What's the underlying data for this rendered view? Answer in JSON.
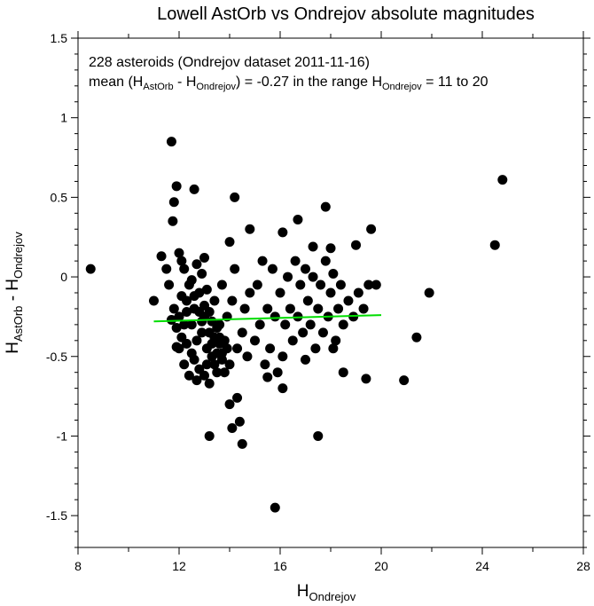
{
  "chart_data": {
    "type": "scatter",
    "title": "Lowell AstOrb vs Ondrejov absolute magnitudes",
    "xlabel": {
      "main": "H",
      "sub": "Ondrejov"
    },
    "ylabel": {
      "main": "H",
      "sub": "AstOrb",
      "middle": " - H",
      "sub2": "Ondrejov"
    },
    "xlim": [
      8,
      28
    ],
    "ylim": [
      -1.7,
      1.5
    ],
    "x_ticks": [
      8,
      12,
      16,
      20,
      24,
      28
    ],
    "y_ticks": [
      1.5,
      1,
      0.5,
      0,
      -0.5,
      -1,
      -1.5
    ],
    "x_tick_labels": [
      "8",
      "12",
      "16",
      "20",
      "24",
      "28"
    ],
    "y_tick_labels": [
      "1.5",
      "1",
      "0.5",
      "0",
      "-0.5",
      "-1",
      "-1.5"
    ],
    "annotation_line1": "228 asteroids (Ondrejov dataset 2011-11-16)",
    "annotation_line2": {
      "p1": "mean (H",
      "s1": "AstOrb",
      "p2": " - H",
      "s2": "Ondrejov",
      "p3": ") = -0.27 in the range H",
      "s3": "Ondrejov",
      "p4": " = 11 to 20"
    },
    "grid": false,
    "fit_line": {
      "x": [
        11,
        20
      ],
      "y": [
        -0.28,
        -0.24
      ],
      "color": "#00dd00"
    },
    "marker_color": "#000000",
    "points": [
      {
        "x": 8.5,
        "y": 0.05
      },
      {
        "x": 11.7,
        "y": 0.85
      },
      {
        "x": 11.9,
        "y": 0.57
      },
      {
        "x": 11.8,
        "y": 0.47
      },
      {
        "x": 11.75,
        "y": 0.35
      },
      {
        "x": 12.6,
        "y": 0.55
      },
      {
        "x": 14.2,
        "y": 0.5
      },
      {
        "x": 24.8,
        "y": 0.61
      },
      {
        "x": 24.5,
        "y": 0.2
      },
      {
        "x": 19.6,
        "y": 0.3
      },
      {
        "x": 17.8,
        "y": 0.44
      },
      {
        "x": 16.7,
        "y": 0.36
      },
      {
        "x": 16.1,
        "y": 0.28
      },
      {
        "x": 14.8,
        "y": 0.3
      },
      {
        "x": 14.0,
        "y": 0.22
      },
      {
        "x": 17.3,
        "y": 0.19
      },
      {
        "x": 18.0,
        "y": 0.18
      },
      {
        "x": 19.0,
        "y": 0.2
      },
      {
        "x": 21.9,
        "y": -0.1
      },
      {
        "x": 21.4,
        "y": -0.38
      },
      {
        "x": 20.9,
        "y": -0.65
      },
      {
        "x": 19.4,
        "y": -0.64
      },
      {
        "x": 15.8,
        "y": -1.45
      },
      {
        "x": 17.5,
        "y": -1.0
      },
      {
        "x": 13.2,
        "y": -1.0
      },
      {
        "x": 14.5,
        "y": -1.05
      },
      {
        "x": 14.1,
        "y": -0.95
      },
      {
        "x": 14.4,
        "y": -0.91
      },
      {
        "x": 14.0,
        "y": -0.8
      },
      {
        "x": 14.3,
        "y": -0.76
      },
      {
        "x": 15.5,
        "y": -0.63
      },
      {
        "x": 16.1,
        "y": -0.7
      },
      {
        "x": 15.9,
        "y": -0.6
      },
      {
        "x": 18.5,
        "y": -0.6
      },
      {
        "x": 17.0,
        "y": -0.52
      },
      {
        "x": 18.1,
        "y": -0.45
      },
      {
        "x": 11.0,
        "y": -0.15
      },
      {
        "x": 11.3,
        "y": 0.13
      },
      {
        "x": 11.5,
        "y": 0.05
      },
      {
        "x": 11.6,
        "y": -0.05
      },
      {
        "x": 11.7,
        "y": -0.27
      },
      {
        "x": 11.9,
        "y": -0.44
      },
      {
        "x": 12.0,
        "y": 0.15
      },
      {
        "x": 12.1,
        "y": 0.1
      },
      {
        "x": 12.2,
        "y": 0.05
      },
      {
        "x": 12.3,
        "y": -0.15
      },
      {
        "x": 12.4,
        "y": -0.05
      },
      {
        "x": 12.5,
        "y": -0.3
      },
      {
        "x": 12.6,
        "y": -0.2
      },
      {
        "x": 12.7,
        "y": -0.4
      },
      {
        "x": 12.8,
        "y": -0.1
      },
      {
        "x": 12.9,
        "y": 0.02
      },
      {
        "x": 13.0,
        "y": -0.25
      },
      {
        "x": 13.1,
        "y": -0.45
      },
      {
        "x": 13.2,
        "y": -0.35
      },
      {
        "x": 13.3,
        "y": -0.5
      },
      {
        "x": 13.4,
        "y": -0.15
      },
      {
        "x": 13.5,
        "y": -0.6
      },
      {
        "x": 13.6,
        "y": -0.3
      },
      {
        "x": 13.7,
        "y": -0.05
      },
      {
        "x": 13.8,
        "y": -0.4
      },
      {
        "x": 13.9,
        "y": -0.25
      },
      {
        "x": 14.0,
        "y": -0.55
      },
      {
        "x": 14.1,
        "y": -0.15
      },
      {
        "x": 14.2,
        "y": 0.05
      },
      {
        "x": 14.3,
        "y": -0.45
      },
      {
        "x": 14.5,
        "y": -0.35
      },
      {
        "x": 14.6,
        "y": -0.2
      },
      {
        "x": 14.7,
        "y": -0.5
      },
      {
        "x": 14.8,
        "y": -0.1
      },
      {
        "x": 15.0,
        "y": -0.4
      },
      {
        "x": 15.1,
        "y": -0.05
      },
      {
        "x": 15.2,
        "y": -0.3
      },
      {
        "x": 15.3,
        "y": 0.1
      },
      {
        "x": 15.4,
        "y": -0.55
      },
      {
        "x": 15.5,
        "y": -0.2
      },
      {
        "x": 15.6,
        "y": -0.45
      },
      {
        "x": 15.7,
        "y": 0.05
      },
      {
        "x": 15.8,
        "y": -0.25
      },
      {
        "x": 16.0,
        "y": -0.1
      },
      {
        "x": 16.1,
        "y": -0.5
      },
      {
        "x": 16.2,
        "y": -0.3
      },
      {
        "x": 16.3,
        "y": 0.0
      },
      {
        "x": 16.4,
        "y": -0.2
      },
      {
        "x": 16.5,
        "y": -0.4
      },
      {
        "x": 16.6,
        "y": 0.1
      },
      {
        "x": 16.7,
        "y": -0.25
      },
      {
        "x": 16.8,
        "y": -0.05
      },
      {
        "x": 16.9,
        "y": -0.35
      },
      {
        "x": 17.0,
        "y": 0.05
      },
      {
        "x": 17.1,
        "y": -0.15
      },
      {
        "x": 17.2,
        "y": -0.3
      },
      {
        "x": 17.3,
        "y": 0.0
      },
      {
        "x": 17.4,
        "y": -0.45
      },
      {
        "x": 17.5,
        "y": -0.2
      },
      {
        "x": 17.6,
        "y": -0.05
      },
      {
        "x": 17.7,
        "y": -0.35
      },
      {
        "x": 17.8,
        "y": 0.1
      },
      {
        "x": 17.9,
        "y": -0.25
      },
      {
        "x": 18.0,
        "y": -0.1
      },
      {
        "x": 18.1,
        "y": 0.02
      },
      {
        "x": 18.2,
        "y": -0.4
      },
      {
        "x": 18.3,
        "y": -0.2
      },
      {
        "x": 18.4,
        "y": -0.05
      },
      {
        "x": 18.5,
        "y": -0.3
      },
      {
        "x": 18.7,
        "y": -0.15
      },
      {
        "x": 18.9,
        "y": -0.25
      },
      {
        "x": 19.1,
        "y": -0.1
      },
      {
        "x": 19.3,
        "y": -0.2
      },
      {
        "x": 19.5,
        "y": -0.05
      },
      {
        "x": 19.8,
        "y": -0.05
      },
      {
        "x": 12.0,
        "y": -0.45
      },
      {
        "x": 12.1,
        "y": -0.38
      },
      {
        "x": 12.2,
        "y": -0.55
      },
      {
        "x": 12.3,
        "y": -0.42
      },
      {
        "x": 12.4,
        "y": -0.62
      },
      {
        "x": 12.5,
        "y": -0.48
      },
      {
        "x": 12.6,
        "y": -0.52
      },
      {
        "x": 12.7,
        "y": -0.65
      },
      {
        "x": 12.8,
        "y": -0.58
      },
      {
        "x": 12.9,
        "y": -0.35
      },
      {
        "x": 13.0,
        "y": -0.62
      },
      {
        "x": 13.1,
        "y": -0.55
      },
      {
        "x": 13.2,
        "y": -0.67
      },
      {
        "x": 13.3,
        "y": -0.42
      },
      {
        "x": 13.4,
        "y": -0.55
      },
      {
        "x": 13.5,
        "y": -0.48
      },
      {
        "x": 13.6,
        "y": -0.38
      },
      {
        "x": 13.7,
        "y": -0.52
      },
      {
        "x": 13.8,
        "y": -0.6
      },
      {
        "x": 13.9,
        "y": -0.45
      },
      {
        "x": 13.0,
        "y": -0.18
      },
      {
        "x": 13.1,
        "y": -0.08
      },
      {
        "x": 13.2,
        "y": -0.22
      },
      {
        "x": 13.3,
        "y": -0.28
      },
      {
        "x": 13.4,
        "y": -0.38
      },
      {
        "x": 13.5,
        "y": -0.32
      },
      {
        "x": 13.6,
        "y": -0.42
      },
      {
        "x": 13.7,
        "y": -0.48
      },
      {
        "x": 12.5,
        "y": -0.02
      },
      {
        "x": 12.6,
        "y": -0.12
      },
      {
        "x": 12.7,
        "y": 0.08
      },
      {
        "x": 12.8,
        "y": -0.22
      },
      {
        "x": 12.9,
        "y": -0.28
      },
      {
        "x": 13.0,
        "y": 0.12
      },
      {
        "x": 11.8,
        "y": -0.2
      },
      {
        "x": 11.9,
        "y": -0.32
      },
      {
        "x": 12.0,
        "y": -0.25
      },
      {
        "x": 12.1,
        "y": -0.12
      },
      {
        "x": 12.2,
        "y": -0.3
      },
      {
        "x": 12.3,
        "y": -0.22
      }
    ]
  }
}
